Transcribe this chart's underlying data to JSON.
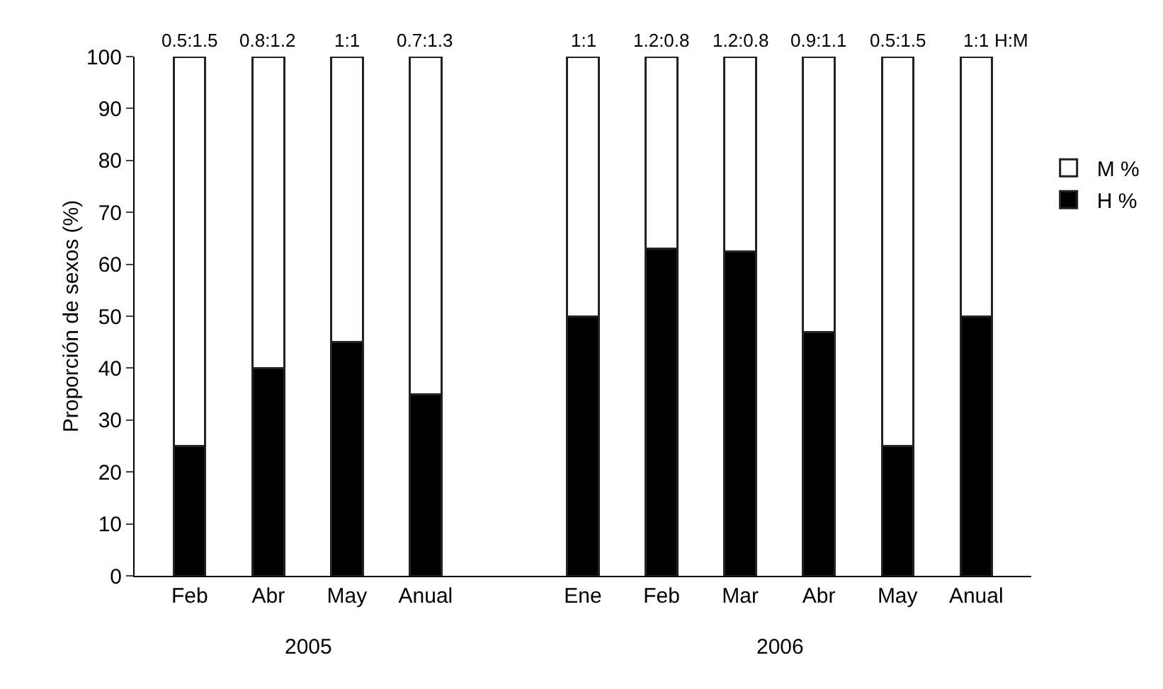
{
  "chart_data": {
    "type": "bar",
    "stacked": true,
    "ylabel": "Proporción de sexos (%)",
    "categories": [
      "Feb",
      "Abr",
      "May",
      "Anual",
      null,
      "Ene",
      "Feb",
      "Mar",
      "Abr",
      "May",
      "Anual"
    ],
    "series": [
      {
        "name": "H %",
        "color": "#000000",
        "values": [
          25,
          40,
          45,
          35,
          null,
          50,
          63,
          62.5,
          47,
          25,
          50
        ]
      },
      {
        "name": "M %",
        "color": "#ffffff",
        "values": [
          75,
          60,
          55,
          65,
          null,
          50,
          37,
          37.5,
          53,
          75,
          50
        ]
      }
    ],
    "ylim": [
      0,
      100
    ],
    "yticks": [
      0,
      10,
      20,
      30,
      40,
      50,
      60,
      70,
      80,
      90,
      100
    ],
    "grid": false,
    "legend": "right",
    "annotations": [
      "0.5:1.5",
      "0.8:1.2",
      "1:1",
      "0.7:1.3",
      "1:1",
      "1.2:0.8",
      "1.2:0.8",
      "0.9:1.1",
      "0.5:1.5",
      "1:1",
      "H:M",
      "2005",
      "2006"
    ]
  }
}
